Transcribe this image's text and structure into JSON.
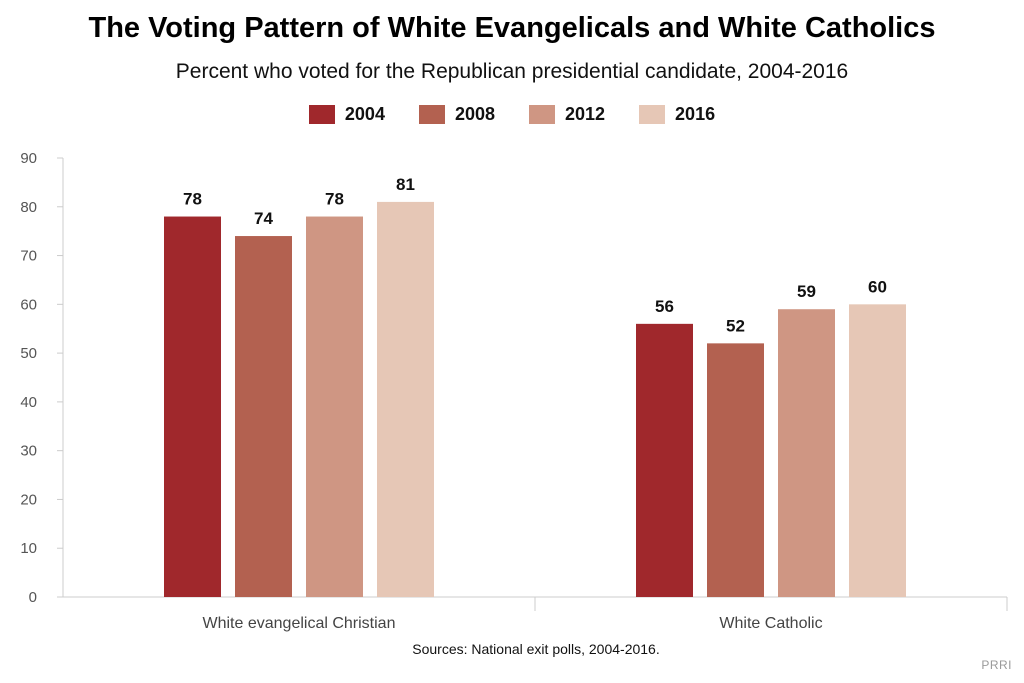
{
  "chart_data": {
    "type": "bar",
    "title": "The Voting Pattern of White Evangelicals and White Catholics",
    "subtitle": "Percent who voted for the Republican presidential candidate, 2004-2016",
    "categories": [
      "White evangelical Christian",
      "White Catholic"
    ],
    "series": [
      {
        "name": "2004",
        "color": "#a0282c",
        "values": [
          78,
          56
        ]
      },
      {
        "name": "2008",
        "color": "#b36150",
        "values": [
          74,
          52
        ]
      },
      {
        "name": "2012",
        "color": "#cf9683",
        "values": [
          78,
          59
        ]
      },
      {
        "name": "2016",
        "color": "#e6c7b6",
        "values": [
          81,
          60
        ]
      }
    ],
    "ylim": [
      0,
      90
    ],
    "yticks": [
      0,
      10,
      20,
      30,
      40,
      50,
      60,
      70,
      80,
      90
    ],
    "grid": false,
    "legend_position": "top"
  },
  "source": "Sources: National exit polls, 2004-2016.",
  "brand": "PRRI"
}
